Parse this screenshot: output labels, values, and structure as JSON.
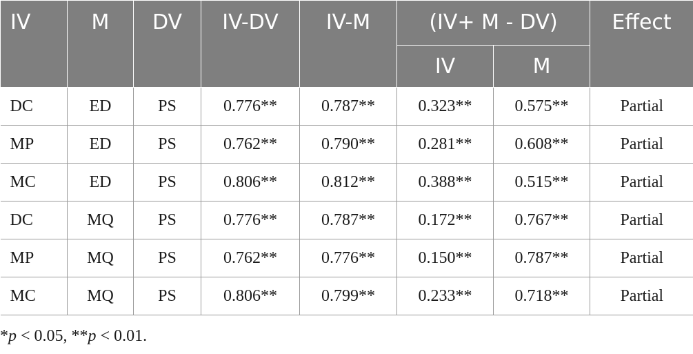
{
  "header": {
    "iv": "IV",
    "m": "M",
    "dv": "DV",
    "iv_dv": "IV-DV",
    "iv_m": "IV-M",
    "combined": "(IV+ M - DV)",
    "combined_iv": "IV",
    "combined_m": "M",
    "effect": "Effect"
  },
  "rows": [
    {
      "iv": "DC",
      "m": "ED",
      "dv": "PS",
      "iv_dv": "0.776**",
      "iv_m": "0.787**",
      "c_iv": "0.323**",
      "c_m": "0.575**",
      "effect": "Partial"
    },
    {
      "iv": "MP",
      "m": "ED",
      "dv": "PS",
      "iv_dv": "0.762**",
      "iv_m": "0.790**",
      "c_iv": "0.281**",
      "c_m": "0.608**",
      "effect": "Partial"
    },
    {
      "iv": "MC",
      "m": "ED",
      "dv": "PS",
      "iv_dv": "0.806**",
      "iv_m": "0.812**",
      "c_iv": "0.388**",
      "c_m": "0.515**",
      "effect": "Partial"
    },
    {
      "iv": "DC",
      "m": "MQ",
      "dv": "PS",
      "iv_dv": "0.776**",
      "iv_m": "0.787**",
      "c_iv": "0.172**",
      "c_m": "0.767**",
      "effect": "Partial"
    },
    {
      "iv": "MP",
      "m": "MQ",
      "dv": "PS",
      "iv_dv": "0.762**",
      "iv_m": "0.776**",
      "c_iv": "0.150**",
      "c_m": "0.787**",
      "effect": "Partial"
    },
    {
      "iv": "MC",
      "m": "MQ",
      "dv": "PS",
      "iv_dv": "0.806**",
      "iv_m": "0.799**",
      "c_iv": "0.233**",
      "c_m": "0.718**",
      "effect": "Partial"
    }
  ],
  "note": {
    "p1_prefix": "*",
    "p1_var": "p",
    "p1_rest": " < 0.05, **",
    "p2_var": "p",
    "p2_rest": " < 0.01."
  },
  "colors": {
    "header_bg": "#7f7f7f",
    "header_text": "#ffffff",
    "grid": "#9a9a9a"
  }
}
